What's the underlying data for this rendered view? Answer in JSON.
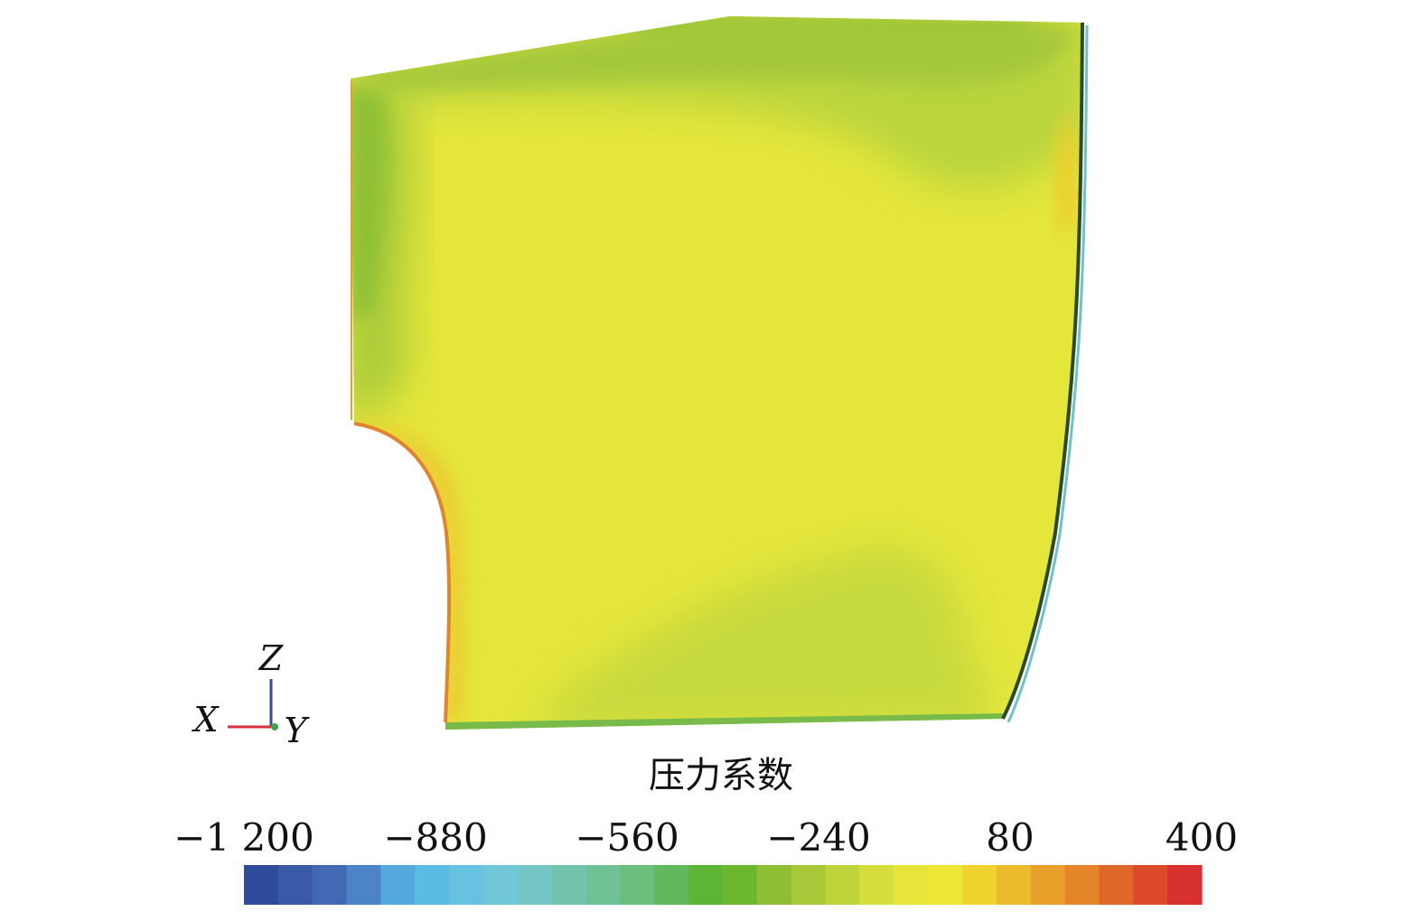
{
  "chart_data": {
    "type": "heatmap",
    "title": "压力系数",
    "colorbar": {
      "min": -1200,
      "max": 400,
      "tick_labels": [
        "−1 200",
        "−880",
        "−560",
        "−240",
        "80",
        "400"
      ],
      "tick_values": [
        -1200,
        -880,
        -560,
        -240,
        80,
        400
      ],
      "bands": [
        "#2e4a9b",
        "#3a5aa8",
        "#4469b4",
        "#4d84c8",
        "#55a8dc",
        "#5cbbe3",
        "#66c2df",
        "#72c7d6",
        "#74c6c4",
        "#73c3ad",
        "#6fc196",
        "#6bbe7c",
        "#64b85c",
        "#5db535",
        "#6db62f",
        "#8ebe34",
        "#a7c939",
        "#bfd43b",
        "#d6de3d",
        "#e7e53a",
        "#ede835",
        "#efd42f",
        "#ecbb2b",
        "#e9a02a",
        "#e5852a",
        "#e0672a",
        "#dc4a2c",
        "#d82f2f"
      ]
    },
    "axes_triad": {
      "z_label": "Z",
      "x_label": "X",
      "y_label": "Y"
    }
  }
}
